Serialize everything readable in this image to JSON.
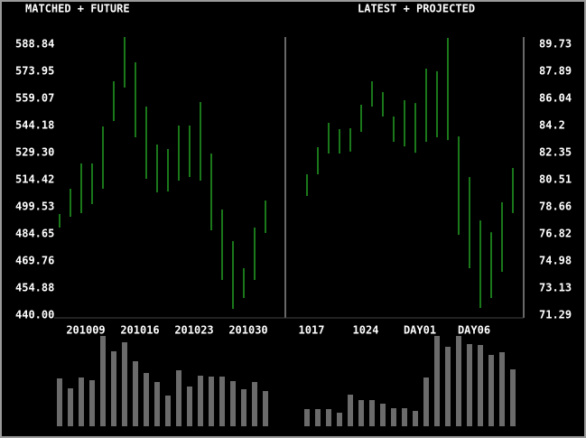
{
  "chart_data": [
    {
      "type": "hilo",
      "title": "MATCHED + FUTURE",
      "categories": [
        null,
        null,
        "201009",
        null,
        null,
        null,
        null,
        "201016",
        null,
        null,
        null,
        null,
        "201023",
        null,
        null,
        null,
        null,
        "201030",
        null,
        null
      ],
      "high": [
        495.57,
        509.46,
        523.35,
        523.35,
        543.69,
        568.5,
        592.81,
        578.92,
        554.61,
        533.77,
        531.29,
        544.19,
        544.19,
        557.09,
        528.81,
        498.05,
        480.69,
        465.8,
        488.13,
        503.01
      ],
      "low": [
        488.13,
        494.08,
        496.06,
        501.02,
        509.46,
        546.67,
        565.02,
        537.74,
        514.92,
        507.48,
        507.97,
        513.93,
        515.91,
        513.93,
        486.64,
        459.35,
        443.48,
        449.43,
        459.35,
        485.15
      ],
      "volume": [
        53,
        42,
        54,
        51,
        100,
        83,
        93,
        72,
        59,
        49,
        34,
        62,
        44,
        56,
        55,
        55,
        50,
        41,
        49,
        39
      ],
      "color": "#33ee33",
      "volume_color": "#6b6b6b",
      "volume_ylim": [
        0,
        100
      ],
      "ylim": [
        440,
        588.84
      ],
      "yticks": [
        {
          "value": 440,
          "label": "440.00"
        },
        454.88,
        469.76,
        484.65,
        499.53,
        514.42,
        {
          "value": 529.3,
          "label": "529.30"
        },
        544.18,
        559.07,
        573.95,
        588.84
      ]
    },
    {
      "type": "hilo",
      "title": "LATEST + PROJECTED",
      "categories": [
        "1017",
        null,
        null,
        null,
        null,
        "1024",
        null,
        null,
        null,
        null,
        "DAY01",
        null,
        null,
        null,
        null,
        "DAY06",
        null,
        null,
        null,
        null
      ],
      "high": [
        80.88,
        82.72,
        84.38,
        83.95,
        84.01,
        85.61,
        87.21,
        86.47,
        84.81,
        85.92,
        85.73,
        88.07,
        87.89,
        90.16,
        83.46,
        80.69,
        77.74,
        76.94,
        78.97,
        81.31
      ],
      "low": [
        79.4,
        80.88,
        82.29,
        82.29,
        82.42,
        83.77,
        85.49,
        84.81,
        83.09,
        82.78,
        82.35,
        83.09,
        83.4,
        83.21,
        76.76,
        74.49,
        71.78,
        72.46,
        74.24,
        78.24
      ],
      "volume": [
        19,
        19,
        19,
        15,
        35,
        29,
        29,
        25,
        20,
        20,
        17,
        54,
        100,
        88,
        100,
        91,
        90,
        79,
        82,
        63
      ],
      "color": "#33ee33",
      "volume_color": "#6b6b6b",
      "volume_ylim": [
        0,
        100
      ],
      "ylim": [
        71.29,
        89.73
      ],
      "yticks": [
        71.29,
        73.13,
        74.98,
        76.82,
        78.66,
        80.51,
        82.35,
        84.2,
        86.04,
        87.89,
        89.73
      ]
    }
  ]
}
